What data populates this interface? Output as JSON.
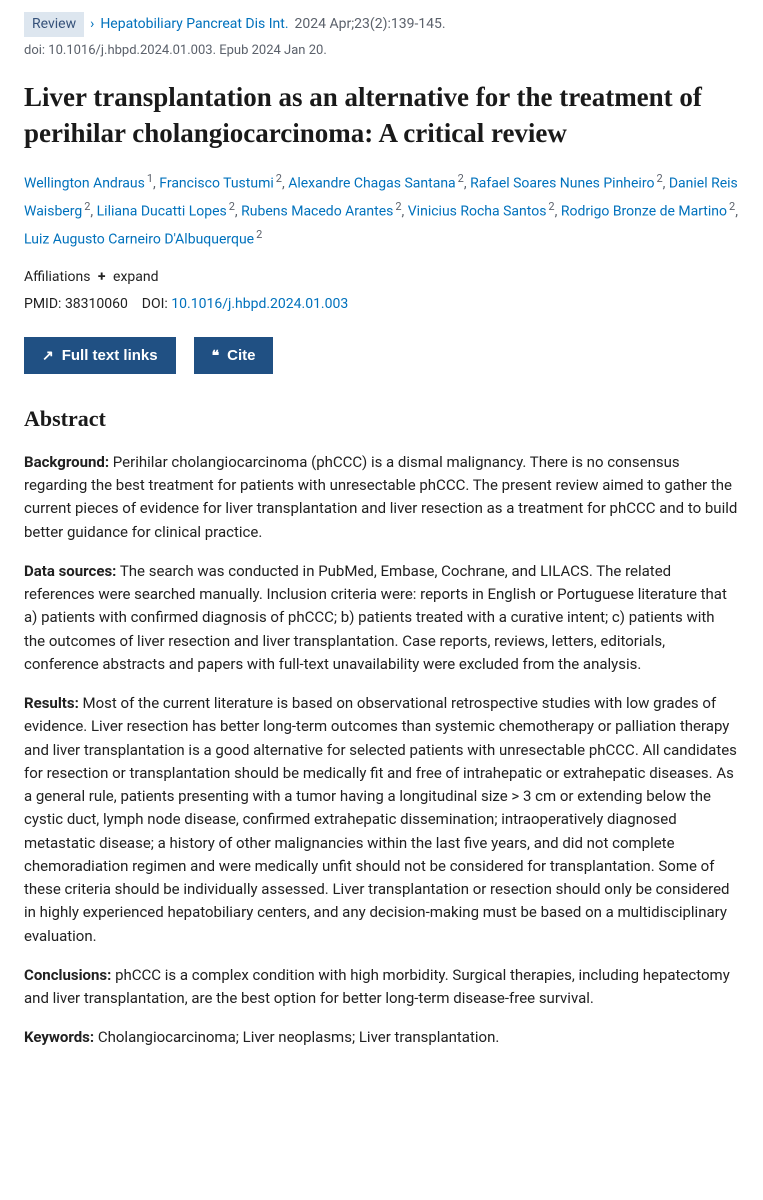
{
  "header": {
    "badge": "Review",
    "journal": "Hepatobiliary Pancreat Dis Int.",
    "pubinfo": "2024 Apr;23(2):139-145.",
    "doi_line": "doi: 10.1016/j.hbpd.2024.01.003. Epub 2024 Jan 20."
  },
  "title": "Liver transplantation as an alternative for the treatment of perihilar cholangiocarcinoma: A critical review",
  "authors": [
    {
      "name": "Wellington Andraus",
      "aff": "1"
    },
    {
      "name": "Francisco Tustumi",
      "aff": "2"
    },
    {
      "name": "Alexandre Chagas Santana",
      "aff": "2"
    },
    {
      "name": "Rafael Soares Nunes Pinheiro",
      "aff": "2"
    },
    {
      "name": "Daniel Reis Waisberg",
      "aff": "2"
    },
    {
      "name": "Liliana Ducatti Lopes",
      "aff": "2"
    },
    {
      "name": "Rubens Macedo Arantes",
      "aff": "2"
    },
    {
      "name": "Vinicius Rocha Santos",
      "aff": "2"
    },
    {
      "name": "Rodrigo Bronze de Martino",
      "aff": "2"
    },
    {
      "name": "Luiz Augusto Carneiro D'Albuquerque",
      "aff": "2"
    }
  ],
  "affiliations": {
    "label": "Affiliations",
    "expand": "expand"
  },
  "ids": {
    "pmid_label": "PMID:",
    "pmid": "38310060",
    "doi_label": "DOI:",
    "doi": "10.1016/j.hbpd.2024.01.003"
  },
  "buttons": {
    "fulltext": "Full text links",
    "cite": "Cite"
  },
  "abstract": {
    "heading": "Abstract",
    "sections": [
      {
        "label": "Background:",
        "text": " Perihilar cholangiocarcinoma (phCCC) is a dismal malignancy. There is no consensus regarding the best treatment for patients with unresectable phCCC. The present review aimed to gather the current pieces of evidence for liver transplantation and liver resection as a treatment for phCCC and to build better guidance for clinical practice."
      },
      {
        "label": "Data sources:",
        "text": " The search was conducted in PubMed, Embase, Cochrane, and LILACS. The related references were searched manually. Inclusion criteria were: reports in English or Portuguese literature that a) patients with confirmed diagnosis of phCCC; b) patients treated with a curative intent; c) patients with the outcomes of liver resection and liver transplantation. Case reports, reviews, letters, editorials, conference abstracts and papers with full-text unavailability were excluded from the analysis."
      },
      {
        "label": "Results:",
        "text": " Most of the current literature is based on observational retrospective studies with low grades of evidence. Liver resection has better long-term outcomes than systemic chemotherapy or palliation therapy and liver transplantation is a good alternative for selected patients with unresectable phCCC. All candidates for resection or transplantation should be medically fit and free of intrahepatic or extrahepatic diseases. As a general rule, patients presenting with a tumor having a longitudinal size > 3 cm or extending below the cystic duct, lymph node disease, confirmed extrahepatic dissemination; intraoperatively diagnosed metastatic disease; a history of other malignancies within the last five years, and did not complete chemoradiation regimen and were medically unfit should not be considered for transplantation. Some of these criteria should be individually assessed. Liver transplantation or resection should only be considered in highly experienced hepatobiliary centers, and any decision-making must be based on a multidisciplinary evaluation."
      },
      {
        "label": "Conclusions:",
        "text": " phCCC is a complex condition with high morbidity. Surgical therapies, including hepatectomy and liver transplantation, are the best option for better long-term disease-free survival."
      },
      {
        "label": "Keywords:",
        "text": " Cholangiocarcinoma; Liver neoplasms; Liver transplantation."
      }
    ]
  },
  "colors": {
    "link": "#0071bc",
    "badge_bg": "#dde6ef",
    "badge_fg": "#36527a",
    "btn_bg": "#205083",
    "text": "#212121",
    "muted": "#5b616b"
  }
}
